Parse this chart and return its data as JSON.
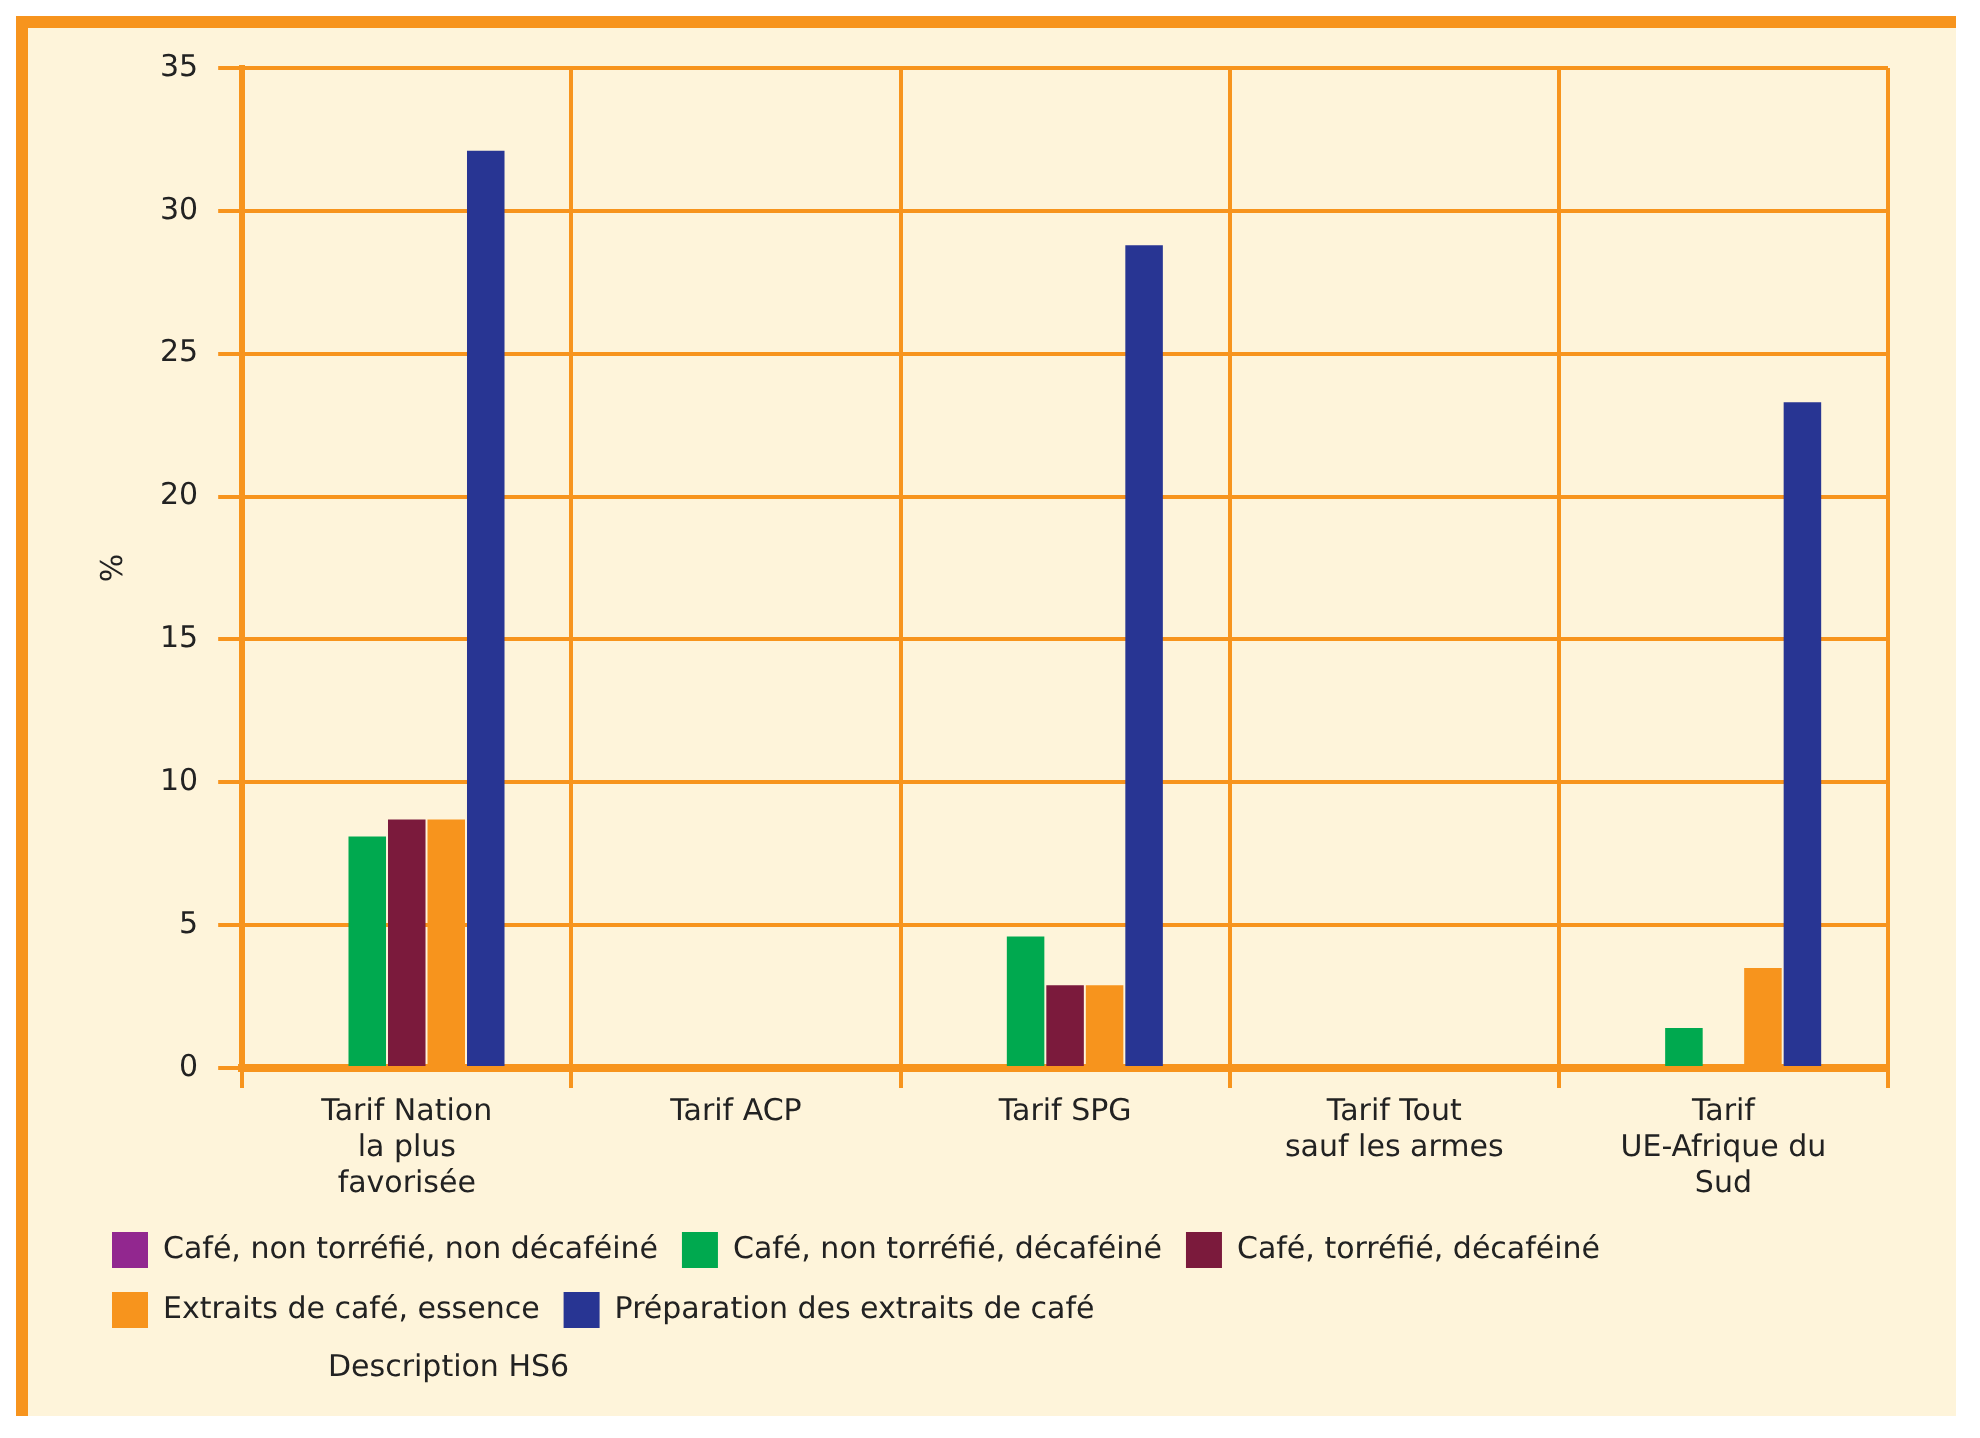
{
  "chart_data": {
    "type": "bar",
    "ylabel": "%",
    "categories": [
      "Tarif Nation la plus favorisée",
      "Tarif ACP",
      "Tarif SPG",
      "Tarif Tout sauf les armes",
      "Tarif UE-Afrique du Sud"
    ],
    "series": [
      {
        "name": "Café, non torréfié, non décaféiné",
        "color": "#92278f",
        "values": [
          0,
          0,
          0,
          0,
          0
        ]
      },
      {
        "name": "Café, non torréfié, décaféiné",
        "color": "#00a94f",
        "values": [
          8.1,
          0,
          4.6,
          0,
          1.4
        ]
      },
      {
        "name": "Café, torréfié, décaféiné",
        "color": "#7b1a3c",
        "values": [
          8.7,
          0,
          2.9,
          0,
          0
        ]
      },
      {
        "name": "Extraits de café, essence",
        "color": "#f7941d",
        "values": [
          8.7,
          0,
          2.9,
          0,
          3.5
        ]
      },
      {
        "name": "Préparation des extraits de café",
        "color": "#283593",
        "values": [
          32.1,
          0,
          28.8,
          0,
          23.3
        ]
      }
    ],
    "ylim": [
      0,
      35
    ],
    "yticks": [
      0,
      5,
      10,
      15,
      20,
      25,
      30,
      35
    ],
    "grid": true,
    "legend": "bottom",
    "annotations": [
      "Description HS6"
    ]
  }
}
